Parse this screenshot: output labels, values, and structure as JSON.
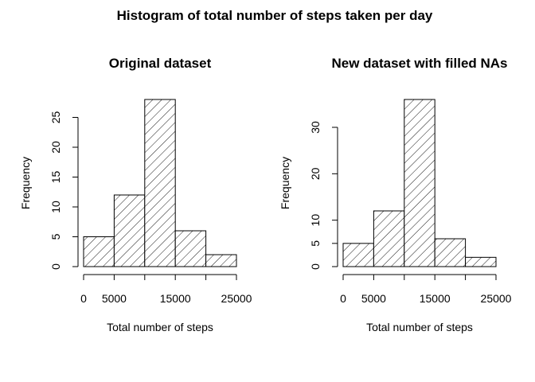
{
  "figure": {
    "title": "Histogram of total number of steps taken per day"
  },
  "chart_data": [
    {
      "type": "bar",
      "title": "Original dataset",
      "xlabel": "Total number of steps",
      "ylabel": "Frequency",
      "bin_edges": [
        0,
        5000,
        10000,
        15000,
        20000,
        25000
      ],
      "values": [
        5,
        12,
        28,
        6,
        2
      ],
      "xticks": [
        0,
        5000,
        15000,
        25000
      ],
      "yticks": [
        0,
        5,
        10,
        15,
        20,
        25
      ],
      "xlim": [
        0,
        25000
      ],
      "ylim": [
        0,
        28
      ],
      "fill": "hatched diagonal",
      "grid": false
    },
    {
      "type": "bar",
      "title": "New dataset with filled NAs",
      "xlabel": "Total number of steps",
      "ylabel": "Frequency",
      "bin_edges": [
        0,
        5000,
        10000,
        15000,
        20000,
        25000
      ],
      "values": [
        5,
        12,
        36,
        6,
        2
      ],
      "xticks": [
        0,
        5000,
        15000,
        25000
      ],
      "yticks": [
        0,
        5,
        10,
        20,
        30
      ],
      "xlim": [
        0,
        25000
      ],
      "ylim": [
        0,
        36
      ],
      "fill": "hatched diagonal",
      "grid": false
    }
  ]
}
